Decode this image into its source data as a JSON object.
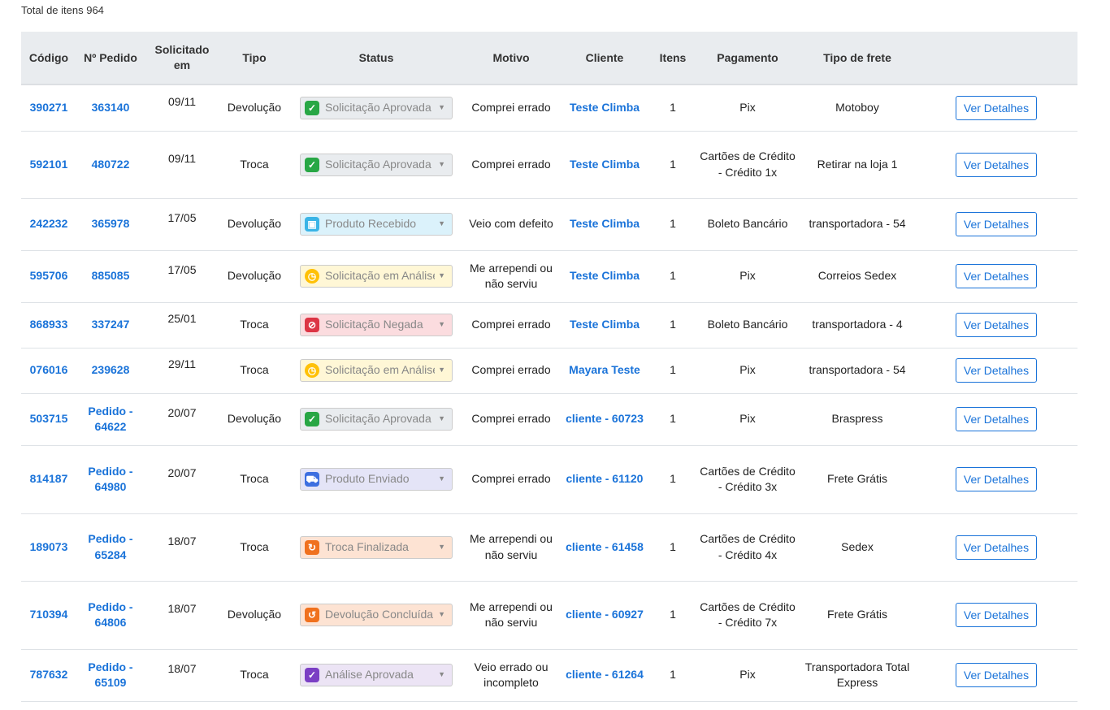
{
  "summary": {
    "total_label": "Total de itens 964"
  },
  "table": {
    "headers": [
      "Código",
      "Nº Pedido",
      "Solicitado em",
      "Tipo",
      "Status",
      "Motivo",
      "Cliente",
      "Itens",
      "Pagamento",
      "Tipo de frete",
      ""
    ],
    "rows": [
      {
        "codigo": "390271",
        "pedido": "363140",
        "data": "09/11",
        "tipo": "Devolução",
        "status": {
          "label": "Solicitação Aprovada",
          "icon": "check-square-icon",
          "color": "#28a745",
          "bg": "#e9ecef"
        },
        "motivo": "Comprei errado",
        "cliente": "Teste Climba",
        "itens": "1",
        "pagamento": "Pix",
        "frete": "Motoboy",
        "action": "Ver Detalhes"
      },
      {
        "codigo": "592101",
        "pedido": "480722",
        "data": "09/11",
        "tipo": "Troca",
        "status": {
          "label": "Solicitação Aprovada",
          "icon": "check-square-icon",
          "color": "#28a745",
          "bg": "#e9ecef"
        },
        "motivo": "Comprei errado",
        "cliente": "Teste Climba",
        "itens": "1",
        "pagamento": "Cartões de Crédito - Crédito 1x",
        "frete": "Retirar na loja 1",
        "action": "Ver Detalhes"
      },
      {
        "codigo": "242232",
        "pedido": "365978",
        "data": "17/05",
        "tipo": "Devolução",
        "status": {
          "label": "Produto Recebido",
          "icon": "box-icon",
          "color": "#3ab4e6",
          "bg": "#dbf2fb"
        },
        "motivo": "Veio com defeito",
        "cliente": "Teste Climba",
        "itens": "1",
        "pagamento": "Boleto Bancário",
        "frete": "transportadora - 54",
        "action": "Ver Detalhes"
      },
      {
        "codigo": "595706",
        "pedido": "885085",
        "data": "17/05",
        "tipo": "Devolução",
        "status": {
          "label": "Solicitação em Análise",
          "icon": "clock-icon",
          "color": "#ffc107",
          "bg": "#fff7d6"
        },
        "motivo": "Me arrependi ou não serviu",
        "cliente": "Teste Climba",
        "itens": "1",
        "pagamento": "Pix",
        "frete": "Correios Sedex",
        "action": "Ver Detalhes"
      },
      {
        "codigo": "868933",
        "pedido": "337247",
        "data": "25/01",
        "tipo": "Troca",
        "status": {
          "label": "Solicitação Negada",
          "icon": "ban-icon",
          "color": "#dc3545",
          "bg": "#fbdcdf"
        },
        "motivo": "Comprei errado",
        "cliente": "Teste Climba",
        "itens": "1",
        "pagamento": "Boleto Bancário",
        "frete": "transportadora - 4",
        "action": "Ver Detalhes"
      },
      {
        "codigo": "076016",
        "pedido": "239628",
        "data": "29/11",
        "tipo": "Troca",
        "status": {
          "label": "Solicitação em Análise",
          "icon": "clock-icon",
          "color": "#ffc107",
          "bg": "#fff7d6"
        },
        "motivo": "Comprei errado",
        "cliente": "Mayara Teste",
        "itens": "1",
        "pagamento": "Pix",
        "frete": "transportadora - 54",
        "action": "Ver Detalhes"
      },
      {
        "codigo": "503715",
        "pedido": "Pedido - 64622",
        "data": "20/07",
        "tipo": "Devolução",
        "status": {
          "label": "Solicitação Aprovada",
          "icon": "check-square-icon",
          "color": "#28a745",
          "bg": "#e9ecef"
        },
        "motivo": "Comprei errado",
        "cliente": "cliente - 60723",
        "itens": "1",
        "pagamento": "Pix",
        "frete": "Braspress",
        "action": "Ver Detalhes"
      },
      {
        "codigo": "814187",
        "pedido": "Pedido - 64980",
        "data": "20/07",
        "tipo": "Troca",
        "status": {
          "label": "Produto Enviado",
          "icon": "truck-icon",
          "color": "#3d6fe0",
          "bg": "#e4e4f7"
        },
        "motivo": "Comprei errado",
        "cliente": "cliente - 61120",
        "itens": "1",
        "pagamento": "Cartões de Crédito - Crédito 3x",
        "frete": "Frete Grátis",
        "action": "Ver Detalhes"
      },
      {
        "codigo": "189073",
        "pedido": "Pedido - 65284",
        "data": "18/07",
        "tipo": "Troca",
        "status": {
          "label": "Troca Finalizada",
          "icon": "refresh-icon",
          "color": "#f0711e",
          "bg": "#fde3d3"
        },
        "motivo": "Me arrependi ou não serviu",
        "cliente": "cliente - 61458",
        "itens": "1",
        "pagamento": "Cartões de Crédito - Crédito 4x",
        "frete": "Sedex",
        "action": "Ver Detalhes"
      },
      {
        "codigo": "710394",
        "pedido": "Pedido - 64806",
        "data": "18/07",
        "tipo": "Devolução",
        "status": {
          "label": "Devolução Concluída",
          "icon": "undo-icon",
          "color": "#f0711e",
          "bg": "#fde3d3"
        },
        "motivo": "Me arrependi ou não serviu",
        "cliente": "cliente - 60927",
        "itens": "1",
        "pagamento": "Cartões de Crédito - Crédito 7x",
        "frete": "Frete Grátis",
        "action": "Ver Detalhes"
      },
      {
        "codigo": "787632",
        "pedido": "Pedido - 65109",
        "data": "18/07",
        "tipo": "Troca",
        "status": {
          "label": "Análise Aprovada",
          "icon": "check-square-icon",
          "color": "#7b3fc4",
          "bg": "#ece4f5"
        },
        "motivo": "Veio errado ou incompleto",
        "cliente": "cliente - 61264",
        "itens": "1",
        "pagamento": "Pix",
        "frete": "Transportadora Total Express",
        "action": "Ver Detalhes"
      }
    ]
  }
}
